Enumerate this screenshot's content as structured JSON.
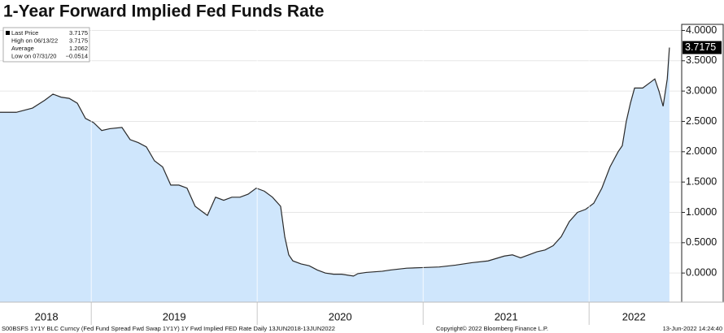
{
  "chart_data": {
    "type": "area",
    "title": "1-Year Forward Implied Fed Funds Rate",
    "x": [
      2018.45,
      2018.548,
      2018.646,
      2018.72,
      2018.769,
      2018.818,
      2018.867,
      2018.916,
      2018.965,
      2019.014,
      2019.063,
      2019.112,
      2019.185,
      2019.234,
      2019.283,
      2019.332,
      2019.381,
      2019.43,
      2019.479,
      2019.528,
      2019.577,
      2019.626,
      2019.675,
      2019.7,
      2019.749,
      2019.798,
      2019.847,
      2019.896,
      2019.945,
      2019.994,
      2020.043,
      2020.092,
      2020.141,
      2020.166,
      2020.19,
      2020.215,
      2020.264,
      2020.313,
      2020.362,
      2020.411,
      2020.46,
      2020.509,
      2020.58,
      2020.607,
      2020.656,
      2020.705,
      2020.754,
      2020.803,
      2020.901,
      2020.999,
      2021.097,
      2021.195,
      2021.293,
      2021.391,
      2021.489,
      2021.538,
      2021.587,
      2021.636,
      2021.685,
      2021.734,
      2021.783,
      2021.832,
      2021.881,
      2021.93,
      2021.979,
      2022.028,
      2022.077,
      2022.126,
      2022.175,
      2022.2,
      2022.224,
      2022.249,
      2022.274,
      2022.323,
      2022.372,
      2022.396,
      2022.421,
      2022.446,
      2022.471,
      2022.484
    ],
    "values": [
      2.65,
      2.65,
      2.72,
      2.85,
      2.95,
      2.9,
      2.88,
      2.8,
      2.55,
      2.48,
      2.35,
      2.38,
      2.4,
      2.2,
      2.15,
      2.08,
      1.85,
      1.75,
      1.45,
      1.45,
      1.4,
      1.1,
      1.0,
      0.95,
      1.25,
      1.2,
      1.25,
      1.25,
      1.3,
      1.4,
      1.35,
      1.25,
      1.1,
      0.6,
      0.3,
      0.2,
      0.15,
      0.12,
      0.05,
      0.0,
      -0.02,
      -0.02,
      -0.05,
      -0.01,
      0.01,
      0.02,
      0.03,
      0.05,
      0.08,
      0.09,
      0.1,
      0.13,
      0.17,
      0.2,
      0.28,
      0.3,
      0.25,
      0.3,
      0.35,
      0.38,
      0.45,
      0.6,
      0.85,
      1.0,
      1.05,
      1.15,
      1.4,
      1.75,
      2.0,
      2.1,
      2.5,
      2.8,
      3.05,
      3.05,
      3.15,
      3.2,
      3.0,
      2.75,
      3.2,
      3.7175
    ],
    "color": "#cfe6fc",
    "line_color": "#2a2a2a",
    "xlim": [
      2018.45,
      2022.558
    ],
    "ylim": [
      -0.48,
      4.1
    ],
    "yticks": [
      {
        "value": 4,
        "label": "4.0000"
      },
      {
        "value": 3.5,
        "label": "3.5000"
      },
      {
        "value": 3,
        "label": "3.0000"
      },
      {
        "value": 2.5,
        "label": "2.5000"
      },
      {
        "value": 2,
        "label": "2.0000"
      },
      {
        "value": 1.5,
        "label": "1.5000"
      },
      {
        "value": 1,
        "label": "1.0000"
      },
      {
        "value": 0.5,
        "label": "0.5000"
      },
      {
        "value": 0,
        "label": "0.0000"
      }
    ],
    "xticks": [
      {
        "value": 2018.73,
        "label": "2018"
      },
      {
        "value": 2019.5,
        "label": "2019"
      },
      {
        "value": 2020.5,
        "label": "2020"
      },
      {
        "value": 2021.5,
        "label": "2021"
      },
      {
        "value": 2022.27,
        "label": "2022"
      }
    ],
    "x_separators": [
      2019,
      2020,
      2021,
      2022
    ],
    "stats": [
      {
        "name": "Last Price",
        "value": 3.7175
      },
      {
        "name": "High on 06/13/22",
        "value": 3.7175
      },
      {
        "name": "Average",
        "value": 1.2062
      },
      {
        "name": "Low on 07/31/20",
        "value": -0.0514,
        "value_label": "−0.0514"
      }
    ],
    "footer_left": "S00BSFS 1Y1Y BLC Curncy (Fed Fund Spread Fwd Swap 1Y1Y) 1Y Fwd Implied FED Rate  Daily 13JUN2018-13JUN2022",
    "footer_center": "Copyright© 2022 Bloomberg Finance L.P.",
    "footer_right": "13-Jun-2022 14:24:40"
  }
}
